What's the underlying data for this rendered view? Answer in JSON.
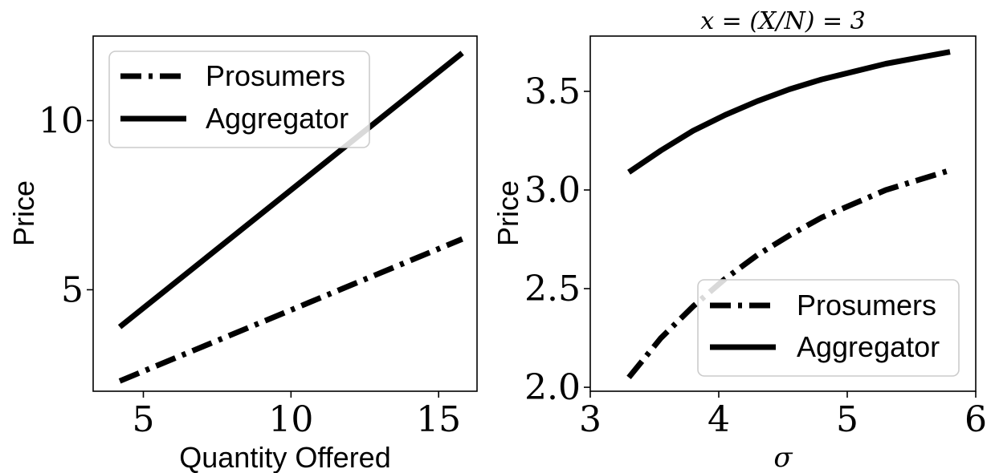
{
  "chart_data": [
    {
      "type": "line",
      "title": "",
      "xlabel": "Quantity Offered",
      "ylabel": "Price",
      "xlim": [
        3.3,
        16.3
      ],
      "ylim": [
        2.0,
        12.5
      ],
      "xticks": [
        5,
        10,
        15
      ],
      "yticks": [
        5,
        10
      ],
      "xtick_labels": [
        "5",
        "10",
        "15"
      ],
      "ytick_labels": [
        "5",
        "10"
      ],
      "legend_position": "top-left",
      "grid": false,
      "series": [
        {
          "name": "Prosumers",
          "style": "dashdot",
          "color": "#000000",
          "x": [
            4.2,
            15.8
          ],
          "y": [
            2.3,
            6.5
          ]
        },
        {
          "name": "Aggregator",
          "style": "solid",
          "color": "#000000",
          "x": [
            4.2,
            15.8
          ],
          "y": [
            3.9,
            12.0
          ]
        }
      ]
    },
    {
      "type": "line",
      "title": "x = (X/N) = 3",
      "xlabel": "σ",
      "ylabel": "Price",
      "xlim": [
        3.0,
        6.0
      ],
      "ylim": [
        1.98,
        3.78
      ],
      "xticks": [
        3,
        4,
        5,
        6
      ],
      "yticks": [
        2.0,
        2.5,
        3.0,
        3.5
      ],
      "xtick_labels": [
        "3",
        "4",
        "5",
        "6"
      ],
      "ytick_labels": [
        "2.0",
        "2.5",
        "3.0",
        "3.5"
      ],
      "legend_position": "lower-right",
      "grid": false,
      "series": [
        {
          "name": "Prosumers",
          "style": "dashdot",
          "color": "#000000",
          "x": [
            3.3,
            3.55,
            3.8,
            4.05,
            4.3,
            4.55,
            4.8,
            5.05,
            5.3,
            5.55,
            5.8
          ],
          "y": [
            2.05,
            2.25,
            2.41,
            2.55,
            2.67,
            2.77,
            2.86,
            2.93,
            3.0,
            3.05,
            3.1
          ]
        },
        {
          "name": "Aggregator",
          "style": "solid",
          "color": "#000000",
          "x": [
            3.3,
            3.55,
            3.8,
            4.05,
            4.3,
            4.55,
            4.8,
            5.05,
            5.3,
            5.55,
            5.8
          ],
          "y": [
            3.09,
            3.2,
            3.3,
            3.38,
            3.45,
            3.51,
            3.56,
            3.6,
            3.64,
            3.67,
            3.7
          ]
        }
      ]
    }
  ]
}
